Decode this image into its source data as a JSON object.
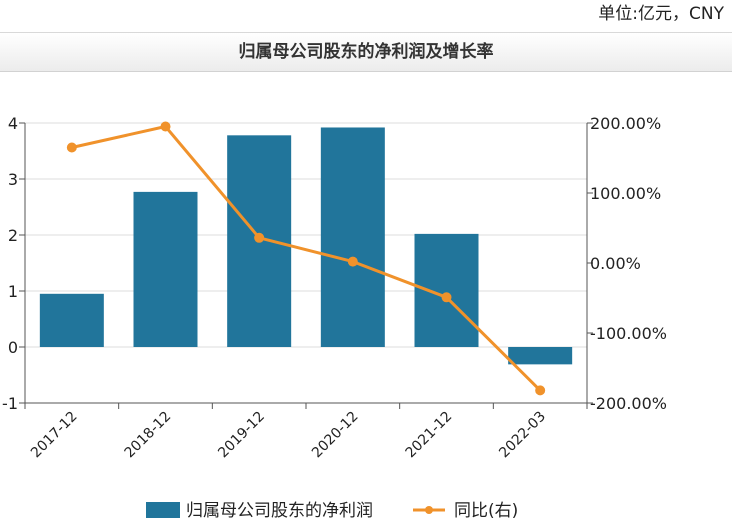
{
  "header": {
    "unit": "单位:亿元，CNY",
    "title": "归属母公司股东的净利润及增长率"
  },
  "chart_data": {
    "type": "bar",
    "categories": [
      "2017-12",
      "2018-12",
      "2019-12",
      "2020-12",
      "2021-12",
      "2022-03"
    ],
    "series": [
      {
        "name": "归属母公司股东的净利润",
        "type": "bar",
        "axis": "left",
        "color": "#21759b",
        "values": [
          0.95,
          2.77,
          3.78,
          3.92,
          2.02,
          -0.31
        ]
      },
      {
        "name": "同比(右)",
        "type": "line",
        "axis": "right",
        "color": "#f0922b",
        "values": [
          165,
          195,
          36,
          2,
          -49,
          -182
        ]
      }
    ],
    "y_left": {
      "min": -1,
      "max": 4,
      "ticks": [
        "-1",
        "0",
        "1",
        "2",
        "3",
        "4"
      ]
    },
    "y_right": {
      "min": -200,
      "max": 200,
      "ticks": [
        "-200.00%",
        "-100.00%",
        "0.00%",
        "100.00%",
        "200.00%"
      ]
    },
    "grid": true,
    "legend_position": "bottom"
  }
}
